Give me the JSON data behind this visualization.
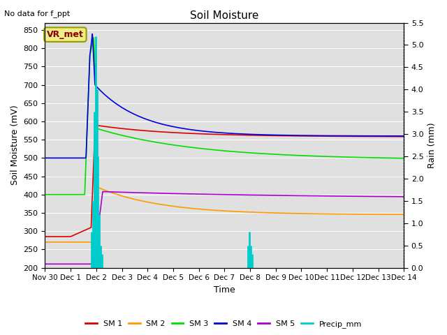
{
  "title": "Soil Moisture",
  "xlabel": "Time",
  "ylabel_left": "Soil Moisture (mV)",
  "ylabel_right": "Rain (mm)",
  "top_left_text": "No data for f_ppt",
  "legend_label": "VR_met",
  "ylim_left": [
    200,
    870
  ],
  "ylim_right": [
    0.0,
    5.5
  ],
  "yticks_left": [
    200,
    250,
    300,
    350,
    400,
    450,
    500,
    550,
    600,
    650,
    700,
    750,
    800,
    850
  ],
  "yticks_right": [
    0.0,
    0.5,
    1.0,
    1.5,
    2.0,
    2.5,
    3.0,
    3.5,
    4.0,
    4.5,
    5.0,
    5.5
  ],
  "xtick_labels": [
    "Nov 30",
    "Dec 1",
    "Dec 2",
    "Dec 3",
    "Dec 4",
    "Dec 5",
    "Dec 6",
    "Dec 7",
    "Dec 8",
    "Dec 9",
    "Dec 10",
    "Dec 11",
    "Dec 12",
    "Dec 13",
    "Dec 14"
  ],
  "colors": {
    "SM1": "#dd0000",
    "SM2": "#ff9900",
    "SM3": "#00dd00",
    "SM4": "#0000dd",
    "SM5": "#aa00cc",
    "Precip": "#00cccc",
    "background": "#e0e0e0",
    "plot_bg": "#e0e0e0"
  },
  "legend_box_facecolor": "#eeee88",
  "legend_box_edgecolor": "#999900",
  "grid_color": "#ffffff"
}
